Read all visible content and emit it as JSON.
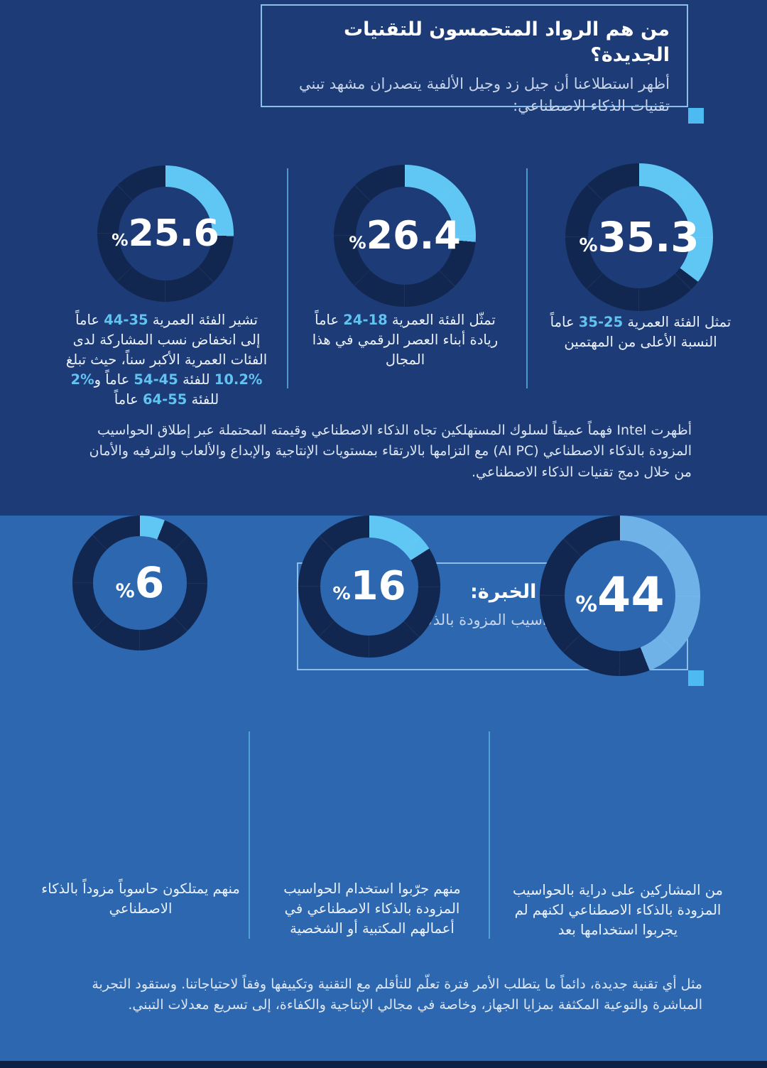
{
  "colors": {
    "bg_top": "#1d3b76",
    "bg_bottom": "#2d67af",
    "ring": "#112750",
    "arc_cyan": "#60c6f3",
    "arc_soft_blue": "#6fb2e8",
    "divider": "#57a9de",
    "box_border": "#8abde8",
    "corner_square": "#4dbbf1",
    "highlight_text": "#62c3f1",
    "footer": "#0d2144",
    "title": "#ffffff",
    "subtitle": "#c6d4ea",
    "body_text": "#dce6f4"
  },
  "section1": {
    "header": {
      "title": "من هم الرواد المتحمسون للتقنيات الجديدة؟",
      "subtitle": "أظهر استطلاعنا أن جيل زد وجيل الألفية يتصدران مشهد تبني تقنيات الذكاء الاصطناعي:"
    },
    "paragraph": "أظهرت Intel فهماً عميقاً لسلوك المستهلكين تجاه الذكاء الاصطناعي وقيمته المحتملة عبر إطلاق الحواسيب المزودة بالذكاء الاصطناعي (AI PC) مع التزامها بالارتقاء بمستويات الإنتاجية والإبداع والألعاب والترفيه والأمان من خلال دمج تقنيات الذكاء الاصطناعي."
  },
  "section2": {
    "header": {
      "title": "الدراية مقابل الخبرة:",
      "subtitle": "كيف استحوذت الحواسيب المزودة بالذكاء الاصطناعي على السوق؟"
    },
    "paragraph": "مثل أي تقنية جديدة، دائماً ما يتطلب الأمر فترة تعلّم للتأقلم مع التقنية وتكييفها وفقاً لاحتياجاتنا. وستقود التجربة المباشرة والتوعية المكثفة بمزايا الجهاز، وخاصة في مجالي الإنتاجية والكفاءة، إلى تسريع معدلات التبني."
  },
  "chart_data": [
    {
      "id": "age-35-44",
      "type": "donut",
      "value": 25.6,
      "display": "25.6",
      "prefix": "%",
      "arc_color": "#60c6f3",
      "start_angle": "top",
      "direction": "clockwise",
      "caption_parts": [
        {
          "t": "تشير الفئة العمرية "
        },
        {
          "t": "35-44",
          "hl": true
        },
        {
          "t": " عاماً إلى انخفاض نسب المشاركة لدى الفئات العمرية الأكبر سناً، حيث تبلغ "
        },
        {
          "t": "%10.2",
          "hl": true
        },
        {
          "t": " للفئة "
        },
        {
          "t": "45-54",
          "hl": true
        },
        {
          "t": " عاماً و"
        },
        {
          "t": "%2",
          "hl": true
        },
        {
          "t": " للفئة "
        },
        {
          "t": "55-64",
          "hl": true
        },
        {
          "t": " عاماً"
        }
      ]
    },
    {
      "id": "age-18-24",
      "type": "donut",
      "value": 26.4,
      "display": "26.4",
      "prefix": "%",
      "arc_color": "#60c6f3",
      "start_angle": "top",
      "direction": "clockwise",
      "caption_parts": [
        {
          "t": "تمثّل الفئة العمرية "
        },
        {
          "t": "18-24",
          "hl": true
        },
        {
          "t": " عاماً ريادة أبناء العصر الرقمي في هذا المجال"
        }
      ]
    },
    {
      "id": "age-25-35",
      "type": "donut",
      "value": 35.3,
      "display": "35.3",
      "prefix": "%",
      "arc_color": "#60c6f3",
      "start_angle": "top",
      "direction": "clockwise",
      "caption_parts": [
        {
          "t": "تمثل الفئة العمرية "
        },
        {
          "t": "25-35",
          "hl": true
        },
        {
          "t": " عاماً النسبة الأعلى من المهتمين"
        }
      ]
    },
    {
      "id": "own-ai-pc",
      "type": "donut",
      "value": 6,
      "display": "6",
      "prefix": "%",
      "arc_color": "#60c6f3",
      "start_angle": "top",
      "direction": "clockwise",
      "caption_parts": [
        {
          "t": "منهم يمتلكون حاسوباً مزوداً بالذكاء الاصطناعي"
        }
      ]
    },
    {
      "id": "tried-ai-pc",
      "type": "donut",
      "value": 16,
      "display": "16",
      "prefix": "%",
      "arc_color": "#60c6f3",
      "start_angle": "top",
      "direction": "clockwise",
      "caption_parts": [
        {
          "t": "منهم جرّبوا استخدام الحواسيب المزودة بالذكاء الاصطناعي في أعمالهم المكتبية أو الشخصية"
        }
      ]
    },
    {
      "id": "aware-not-tried",
      "type": "donut",
      "value": 44,
      "display": "44",
      "prefix": "%",
      "arc_color": "#6fb2e8",
      "start_angle": "top",
      "direction": "clockwise",
      "caption_parts": [
        {
          "t": "من المشاركين على دراية بالحواسيب المزودة بالذكاء الاصطناعي لكنهم لم يجربوا استخدامها بعد"
        }
      ]
    }
  ]
}
